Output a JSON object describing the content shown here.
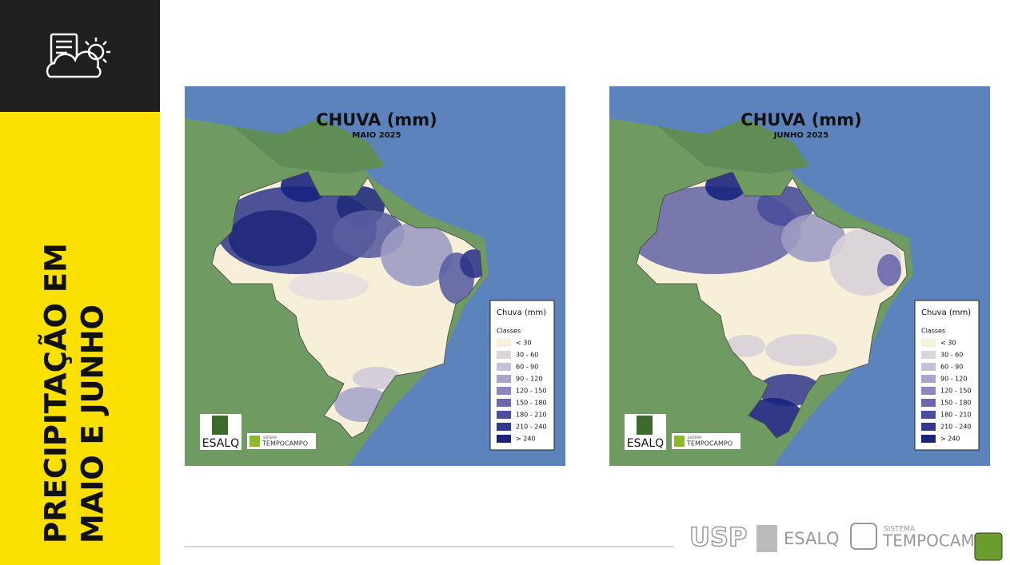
{
  "sidebar_title": [
    "PRECIPITAÇÃO EM",
    "MAIO E JUNHO"
  ],
  "maps": [
    {
      "title": "CHUVA (mm)",
      "subtitle": "MAIO 2025",
      "legend": {
        "title": "Chuva (mm)",
        "subtitle": "Classes",
        "classes": [
          "< 30",
          "30 - 60",
          "60 - 90",
          "90 - 120",
          "120 - 150",
          "150 - 180",
          "180 - 210",
          "210 - 240",
          "> 240"
        ],
        "colors": [
          "#f8f0da",
          "#dcd4d8",
          "#c4c0d8",
          "#a6a4cc",
          "#8a88be",
          "#6a68ac",
          "#4c4e9c",
          "#333a8c",
          "#1c237a"
        ]
      },
      "logos": {
        "esalq": "ESALQ",
        "sistema": "SISTEMA",
        "tempocampo": "TEMPOCAMPO"
      }
    },
    {
      "title": "CHUVA (mm)",
      "subtitle": "JUNHO 2025",
      "legend": {
        "title": "Chuva (mm)",
        "subtitle": "Classes",
        "classes": [
          "< 30",
          "30 - 60",
          "60 - 90",
          "90 - 120",
          "120 - 150",
          "150 - 180",
          "180 - 210",
          "210 - 240",
          "> 240"
        ],
        "colors": [
          "#f8f0da",
          "#dcd4d8",
          "#c4c0d8",
          "#a6a4cc",
          "#8a88be",
          "#6a68ac",
          "#4c4e9c",
          "#333a8c",
          "#1c237a"
        ]
      },
      "logos": {
        "esalq": "ESALQ",
        "sistema": "SISTEMA",
        "tempocampo": "TEMPOCAMPO"
      }
    }
  ],
  "footer": {
    "usp": "USP",
    "esalq": "ESALQ",
    "sistema": "SISTEMA",
    "tempocampo": "TEMPOCAMPO"
  }
}
